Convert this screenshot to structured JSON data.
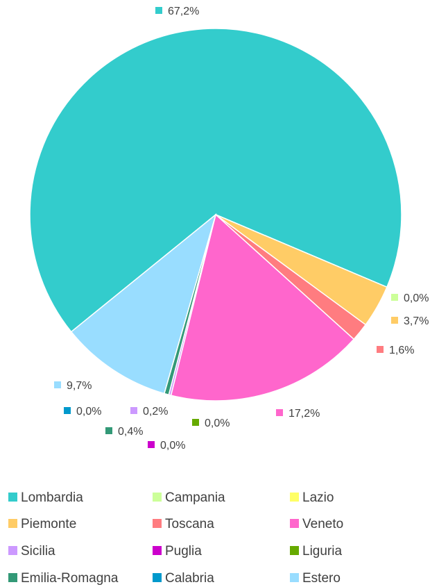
{
  "chart_data": {
    "type": "pie",
    "categories": [
      "Lombardia",
      "Campania",
      "Lazio",
      "Piemonte",
      "Toscana",
      "Veneto",
      "Sicilia",
      "Puglia",
      "Liguria",
      "Emilia-Romagna",
      "Calabria",
      "Estero"
    ],
    "values": [
      67.2,
      0.0,
      0.0,
      3.7,
      1.6,
      17.2,
      0.2,
      0.0,
      0.0,
      0.4,
      0.0,
      9.7
    ],
    "value_labels": [
      "67,2%",
      "0,0%",
      null,
      "3,7%",
      "1,6%",
      "17,2%",
      "0,2%",
      "0,0%",
      "0,0%",
      "0,4%",
      "0,0%",
      "9,7%"
    ],
    "colors": [
      "#33CCCC",
      "#CCFF99",
      "#FFFF66",
      "#FFCC66",
      "#FF7C80",
      "#FF66CC",
      "#CC99FF",
      "#CC00CC",
      "#66AA00",
      "#339977",
      "#0099CC",
      "#99DDFF"
    ],
    "legend": "bottom"
  }
}
